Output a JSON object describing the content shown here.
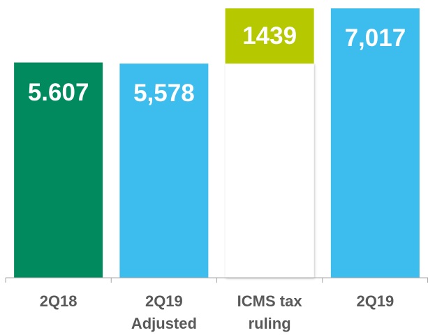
{
  "chart_data": {
    "type": "waterfall",
    "categories": [
      "2Q18",
      "2Q19\nAdjusted",
      "ICMS tax\nruling",
      "2Q19"
    ],
    "values": [
      5607,
      5578,
      1439,
      7017
    ],
    "value_labels": [
      "5.607",
      "5,578",
      "1439",
      "7,017"
    ],
    "measures": [
      "absolute",
      "absolute",
      "relative",
      "total"
    ],
    "colors": [
      "#008a5e",
      "#3dbdee",
      "#b5c800",
      "#3dbdee"
    ],
    "ylim": [
      0,
      7000
    ]
  }
}
